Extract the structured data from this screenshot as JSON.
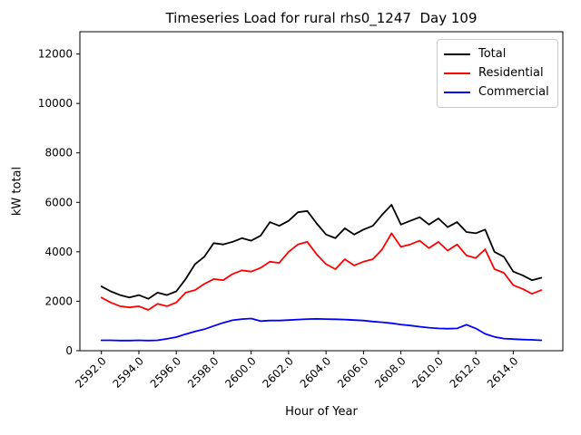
{
  "chart_data": {
    "type": "line",
    "title": "Timeseries Load for rural rhs0_1247  Day 109",
    "xlabel": "Hour of Year",
    "ylabel": "kW total",
    "grid": false,
    "legend_position": "upper right",
    "xlim": [
      2590.85,
      2616.65
    ],
    "ylim": [
      0,
      12900
    ],
    "x_tick_rotation": 45,
    "x_tick_values": [
      2592,
      2594,
      2596,
      2598,
      2600,
      2602,
      2604,
      2606,
      2608,
      2610,
      2612,
      2614
    ],
    "x_tick_labels": [
      "2592.0",
      "2594.0",
      "2596.0",
      "2598.0",
      "2600.0",
      "2602.0",
      "2604.0",
      "2606.0",
      "2608.0",
      "2610.0",
      "2612.0",
      "2614.0"
    ],
    "y_tick_values": [
      0,
      2000,
      4000,
      6000,
      8000,
      10000,
      12000
    ],
    "y_tick_labels": [
      "0",
      "2000",
      "4000",
      "6000",
      "8000",
      "10000",
      "12000"
    ],
    "x": [
      2592.0,
      2592.5,
      2593.0,
      2593.5,
      2594.0,
      2594.5,
      2595.0,
      2595.5,
      2596.0,
      2596.5,
      2597.0,
      2597.5,
      2598.0,
      2598.5,
      2599.0,
      2599.5,
      2600.0,
      2600.5,
      2601.0,
      2601.5,
      2602.0,
      2602.5,
      2603.0,
      2603.5,
      2604.0,
      2604.5,
      2605.0,
      2605.5,
      2606.0,
      2606.5,
      2607.0,
      2607.5,
      2608.0,
      2608.5,
      2609.0,
      2609.5,
      2610.0,
      2610.5,
      2611.0,
      2611.5,
      2612.0,
      2612.5,
      2613.0,
      2613.5,
      2614.0,
      2614.5,
      2615.0,
      2615.5
    ],
    "series": [
      {
        "name": "Total",
        "color": "#000000",
        "values": [
          2600,
          2400,
          2250,
          2150,
          2250,
          2100,
          2350,
          2250,
          2400,
          2900,
          3500,
          3800,
          4350,
          4300,
          4400,
          4550,
          4450,
          4650,
          5200,
          5050,
          5250,
          5600,
          5650,
          5150,
          4700,
          4550,
          4950,
          4700,
          4900,
          5050,
          5500,
          5900,
          5100,
          5250,
          5400,
          5100,
          5350,
          5000,
          5200,
          4800,
          4750,
          4900,
          4000,
          3800,
          3200,
          3050,
          2850,
          2950
        ]
      },
      {
        "name": "Residential",
        "color": "#ff0000",
        "values": [
          2150,
          1950,
          1800,
          1750,
          1800,
          1650,
          1900,
          1800,
          1950,
          2350,
          2450,
          2700,
          2900,
          2850,
          3100,
          3250,
          3200,
          3350,
          3600,
          3550,
          4000,
          4300,
          4400,
          3900,
          3500,
          3300,
          3700,
          3450,
          3600,
          3700,
          4100,
          4750,
          4200,
          4300,
          4450,
          4150,
          4400,
          4050,
          4300,
          3850,
          3750,
          4100,
          3300,
          3150,
          2650,
          2500,
          2300,
          2450
        ]
      },
      {
        "name": "Commercial",
        "color": "#0000ff",
        "values": [
          420,
          420,
          410,
          410,
          420,
          410,
          420,
          480,
          550,
          670,
          780,
          870,
          1000,
          1130,
          1230,
          1280,
          1300,
          1200,
          1220,
          1220,
          1240,
          1260,
          1280,
          1290,
          1280,
          1270,
          1260,
          1240,
          1220,
          1180,
          1150,
          1110,
          1060,
          1020,
          970,
          930,
          900,
          890,
          900,
          1050,
          900,
          680,
          560,
          490,
          470,
          450,
          440,
          420
        ]
      }
    ]
  }
}
